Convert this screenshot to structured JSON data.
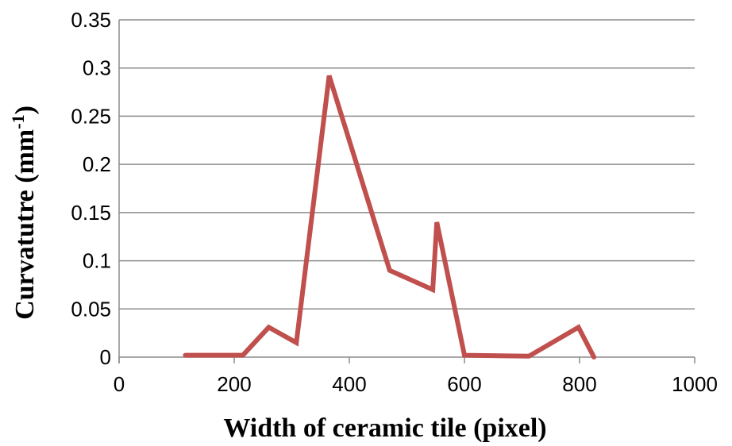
{
  "chart_data": {
    "type": "line",
    "title": "",
    "xlabel": "Width of ceramic tile (pixel)",
    "ylabel": {
      "base": "Curvatutre  (mm",
      "superscript": "-1",
      "close": ")"
    },
    "xlim": [
      0,
      1000
    ],
    "ylim": [
      0,
      0.35
    ],
    "xticks": [
      "0",
      "200",
      "400",
      "600",
      "800",
      "1000"
    ],
    "yticks": [
      "0",
      "0.05",
      "0.1",
      "0.15",
      "0.2",
      "0.25",
      "0.3",
      "0.35"
    ],
    "grid": true,
    "legend": "none",
    "series": [
      {
        "color": "#c0504d",
        "x": [
          115,
          215,
          260,
          308,
          365,
          470,
          545,
          552,
          600,
          712,
          798,
          825
        ],
        "y": [
          0.002,
          0.002,
          0.031,
          0.015,
          0.292,
          0.09,
          0.07,
          0.14,
          0.002,
          0.001,
          0.031,
          0.0
        ]
      }
    ]
  }
}
